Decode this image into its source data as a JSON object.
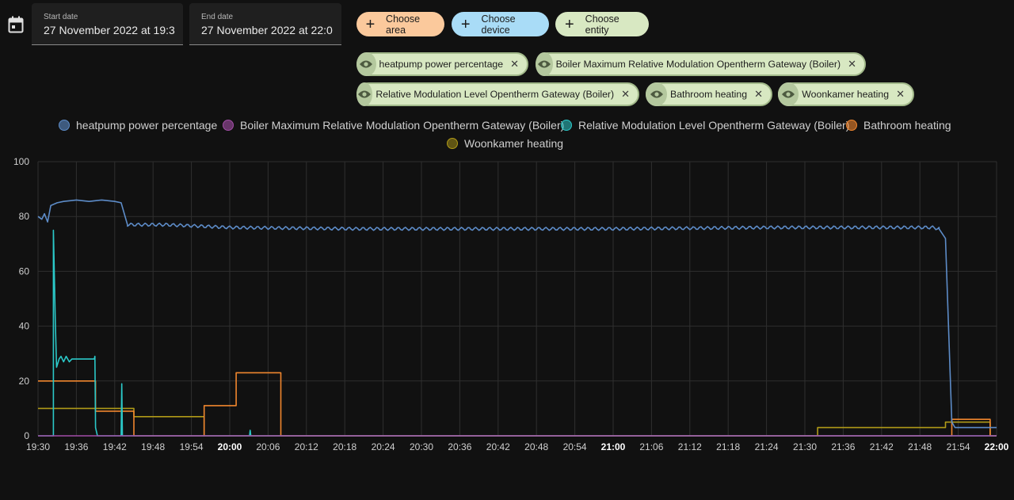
{
  "date_range": {
    "start_label": "Start date",
    "start_value": "27 November 2022 at 19:3",
    "end_label": "End date",
    "end_value": "27 November 2022 at 22:0"
  },
  "target_picker": {
    "choose_area": "Choose area",
    "choose_device": "Choose device",
    "choose_entity": "Choose entity"
  },
  "selected_entities": [
    "heatpump power percentage",
    "Boiler Maximum Relative Modulation Opentherm Gateway (Boiler)",
    "Relative Modulation Level Opentherm Gateway (Boiler)",
    "Bathroom heating",
    "Woonkamer heating"
  ],
  "colors": {
    "area_chip": "#fbc99c",
    "device_chip": "#a9dcf7",
    "entity_chip": "#d8e8c2",
    "heatpump": "#5d8cc8",
    "boiler_max": "#a34ea7",
    "rel_mod": "#2bc8c8",
    "bathroom": "#f0862e",
    "woonkamer": "#b09a18"
  },
  "chart_data": {
    "type": "line",
    "step": true,
    "x_ticks": [
      "19:30",
      "19:36",
      "19:42",
      "19:48",
      "19:54",
      "20:00",
      "20:06",
      "20:12",
      "20:18",
      "20:24",
      "20:30",
      "20:36",
      "20:42",
      "20:48",
      "20:54",
      "21:00",
      "21:06",
      "21:12",
      "21:18",
      "21:24",
      "21:30",
      "21:36",
      "21:42",
      "21:48",
      "21:54",
      "22:00"
    ],
    "bold_ticks": [
      "20:00",
      "21:00",
      "22:00"
    ],
    "y_ticks": [
      0,
      20,
      40,
      60,
      80,
      100
    ],
    "ylim": [
      0,
      100
    ],
    "xlim_minutes": [
      0,
      150
    ],
    "legend_position": "top-center",
    "grid": true,
    "series": [
      {
        "name": "heatpump power percentage",
        "color": "#5d8cc8",
        "points": [
          [
            0,
            80
          ],
          [
            0.6,
            79
          ],
          [
            1,
            81
          ],
          [
            1.5,
            78
          ],
          [
            2,
            84
          ],
          [
            3,
            85
          ],
          [
            4,
            85.5
          ],
          [
            6,
            86
          ],
          [
            8,
            85.5
          ],
          [
            10,
            86
          ],
          [
            12,
            85.5
          ],
          [
            13,
            85
          ],
          [
            14,
            77
          ],
          [
            16,
            77
          ],
          [
            20,
            77
          ],
          [
            30,
            76
          ],
          [
            50,
            75.5
          ],
          [
            70,
            75.5
          ],
          [
            90,
            75.5
          ],
          [
            115,
            76
          ],
          [
            140,
            76
          ],
          [
            141,
            75.5
          ],
          [
            142,
            72
          ],
          [
            143,
            5
          ],
          [
            143.5,
            3
          ],
          [
            150,
            3
          ]
        ],
        "wavy_from": 14,
        "wavy_to": 141
      },
      {
        "name": "Boiler Maximum Relative Modulation Opentherm Gateway (Boiler)",
        "color": "#a34ea7",
        "points": [
          [
            0,
            0
          ],
          [
            150,
            0
          ]
        ]
      },
      {
        "name": "Relative Modulation Level Opentherm Gateway (Boiler)",
        "color": "#2bc8c8",
        "points": [
          [
            0,
            0
          ],
          [
            2.4,
            0
          ],
          [
            2.4,
            75
          ],
          [
            2.7,
            42
          ],
          [
            2.9,
            25
          ],
          [
            3.3,
            28
          ],
          [
            3.6,
            29
          ],
          [
            4,
            27
          ],
          [
            4.4,
            29
          ],
          [
            4.9,
            27
          ],
          [
            5.3,
            28
          ],
          [
            6,
            28
          ],
          [
            8,
            28
          ],
          [
            8.8,
            28
          ],
          [
            8.9,
            29
          ],
          [
            9,
            3
          ],
          [
            9.3,
            0
          ],
          [
            13,
            0
          ],
          [
            13.1,
            19
          ],
          [
            13.2,
            0
          ],
          [
            33.1,
            0
          ],
          [
            33.2,
            2
          ],
          [
            33.3,
            0
          ],
          [
            150,
            0
          ]
        ]
      },
      {
        "name": "Bathroom heating",
        "color": "#f0862e",
        "points": [
          [
            0,
            20
          ],
          [
            9,
            20
          ],
          [
            9,
            9
          ],
          [
            15,
            9
          ],
          [
            15,
            0
          ],
          [
            26,
            0
          ],
          [
            26,
            11
          ],
          [
            31,
            11
          ],
          [
            31,
            23
          ],
          [
            38,
            23
          ],
          [
            38,
            0
          ],
          [
            143,
            0
          ],
          [
            143,
            6
          ],
          [
            149,
            6
          ],
          [
            149,
            0
          ],
          [
            150,
            0
          ]
        ]
      },
      {
        "name": "Woonkamer heating",
        "color": "#b09a18",
        "points": [
          [
            0,
            10
          ],
          [
            15,
            10
          ],
          [
            15,
            7
          ],
          [
            26,
            7
          ],
          [
            26,
            0
          ],
          [
            122,
            0
          ],
          [
            122,
            3
          ],
          [
            142,
            3
          ],
          [
            142,
            5
          ],
          [
            149,
            5
          ],
          [
            149,
            0
          ],
          [
            150,
            0
          ]
        ]
      }
    ]
  }
}
